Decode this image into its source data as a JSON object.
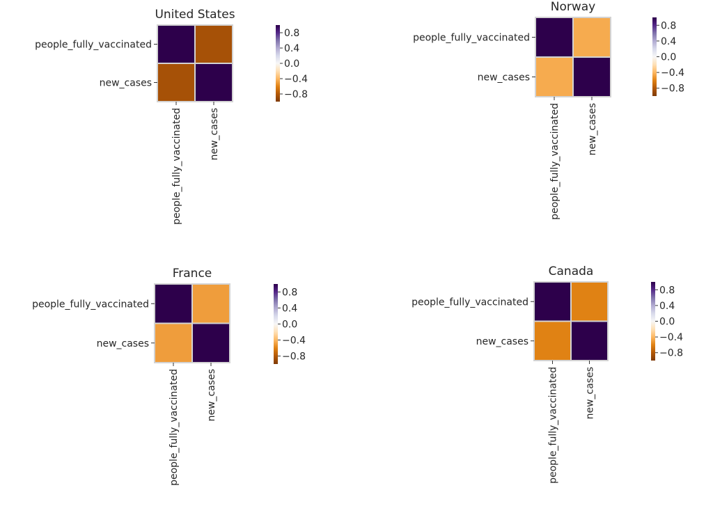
{
  "chart_data": [
    {
      "type": "heatmap",
      "title": "United States",
      "rows": [
        "people_fully_vaccinated",
        "new_cases"
      ],
      "cols": [
        "people_fully_vaccinated",
        "new_cases"
      ],
      "values": [
        [
          1,
          -0.85
        ],
        [
          -0.85,
          1
        ]
      ],
      "colormap": "PuOr",
      "vmin": -1,
      "vmax": 1,
      "colorbar_ticks": [
        "0.8",
        "0.4",
        "0.0",
        "−0.4",
        "−0.8"
      ],
      "colorbar_tick_values": [
        0.8,
        0.4,
        0,
        -0.4,
        -0.8
      ]
    },
    {
      "type": "heatmap",
      "title": "Norway",
      "rows": [
        "people_fully_vaccinated",
        "new_cases"
      ],
      "cols": [
        "people_fully_vaccinated",
        "new_cases"
      ],
      "values": [
        [
          1,
          -0.45
        ],
        [
          -0.45,
          1
        ]
      ],
      "colormap": "PuOr",
      "vmin": -1,
      "vmax": 1,
      "colorbar_ticks": [
        "0.8",
        "0.4",
        "0.0",
        "−0.4",
        "−0.8"
      ],
      "colorbar_tick_values": [
        0.8,
        0.4,
        0,
        -0.4,
        -0.8
      ]
    },
    {
      "type": "heatmap",
      "title": "France",
      "rows": [
        "people_fully_vaccinated",
        "new_cases"
      ],
      "cols": [
        "people_fully_vaccinated",
        "new_cases"
      ],
      "values": [
        [
          1,
          -0.5
        ],
        [
          -0.5,
          1
        ]
      ],
      "colormap": "PuOr",
      "vmin": -1,
      "vmax": 1,
      "colorbar_ticks": [
        "0.8",
        "0.4",
        "0.0",
        "−0.4",
        "−0.8"
      ],
      "colorbar_tick_values": [
        0.8,
        0.4,
        0,
        -0.4,
        -0.8
      ]
    },
    {
      "type": "heatmap",
      "title": "Canada",
      "rows": [
        "people_fully_vaccinated",
        "new_cases"
      ],
      "cols": [
        "people_fully_vaccinated",
        "new_cases"
      ],
      "values": [
        [
          1,
          -0.6
        ],
        [
          -0.6,
          1
        ]
      ],
      "colormap": "PuOr",
      "vmin": -1,
      "vmax": 1,
      "colorbar_ticks": [
        "0.8",
        "0.4",
        "0.0",
        "−0.4",
        "−0.8"
      ],
      "colorbar_tick_values": [
        0.8,
        0.4,
        0,
        -0.4,
        -0.8
      ]
    }
  ]
}
